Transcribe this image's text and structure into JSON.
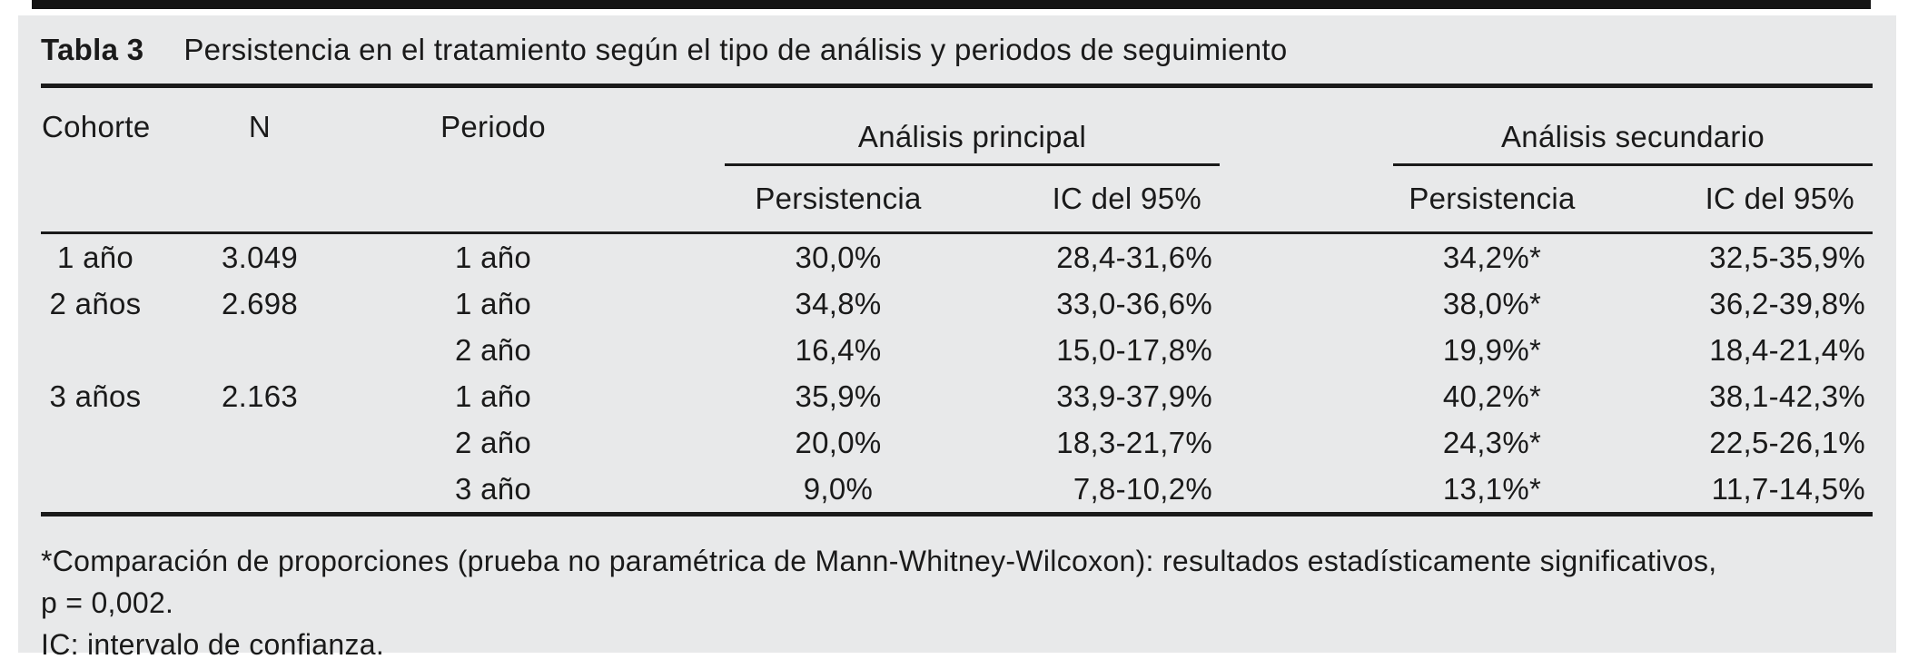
{
  "title": {
    "label": "Tabla 3",
    "text": "Persistencia en el tratamiento según el tipo de análisis y periodos de seguimiento"
  },
  "table": {
    "headers": {
      "cohorte": "Cohorte",
      "n": "N",
      "periodo": "Periodo"
    },
    "groups": [
      {
        "label": "Análisis principal",
        "sub": [
          "Persistencia",
          "IC del 95%"
        ]
      },
      {
        "label": "Análisis secundario",
        "sub": [
          "Persistencia",
          "IC del 95%"
        ]
      }
    ],
    "rows": [
      {
        "cohorte": "1 año",
        "n": "3.049",
        "periodo": "1 año",
        "ap_persistencia": "30,0%",
        "ap_ic": "28,4-31,6%",
        "as_persistencia": "34,2%*",
        "as_ic": "32,5-35,9%"
      },
      {
        "cohorte": "2 años",
        "n": "2.698",
        "periodo": "1 año",
        "ap_persistencia": "34,8%",
        "ap_ic": "33,0-36,6%",
        "as_persistencia": "38,0%*",
        "as_ic": "36,2-39,8%"
      },
      {
        "cohorte": "",
        "n": "",
        "periodo": "2 año",
        "ap_persistencia": "16,4%",
        "ap_ic": "15,0-17,8%",
        "as_persistencia": "19,9%*",
        "as_ic": "18,4-21,4%"
      },
      {
        "cohorte": "3 años",
        "n": "2.163",
        "periodo": "1 año",
        "ap_persistencia": "35,9%",
        "ap_ic": "33,9-37,9%",
        "as_persistencia": "40,2%*",
        "as_ic": "38,1-42,3%"
      },
      {
        "cohorte": "",
        "n": "",
        "periodo": "2 año",
        "ap_persistencia": "20,0%",
        "ap_ic": "18,3-21,7%",
        "as_persistencia": "24,3%*",
        "as_ic": "22,5-26,1%"
      },
      {
        "cohorte": "",
        "n": "",
        "periodo": "3 año",
        "ap_persistencia": "9,0%",
        "ap_ic": "7,8-10,2%",
        "as_persistencia": "13,1%*",
        "as_ic": "11,7-14,5%"
      }
    ]
  },
  "footnotes": {
    "line1": "*Comparación de proporciones (prueba no paramétrica de Mann-Whitney-Wilcoxon): resultados estadísticamente significativos,",
    "line2": "p = 0,002.",
    "line3": "IC: intervalo de confianza."
  },
  "colors": {
    "page": "#ffffff",
    "panel_background": "#e8e9ea",
    "text": "#1a1a1a",
    "rule": "#1a1a1a",
    "top_bar": "#141414"
  }
}
